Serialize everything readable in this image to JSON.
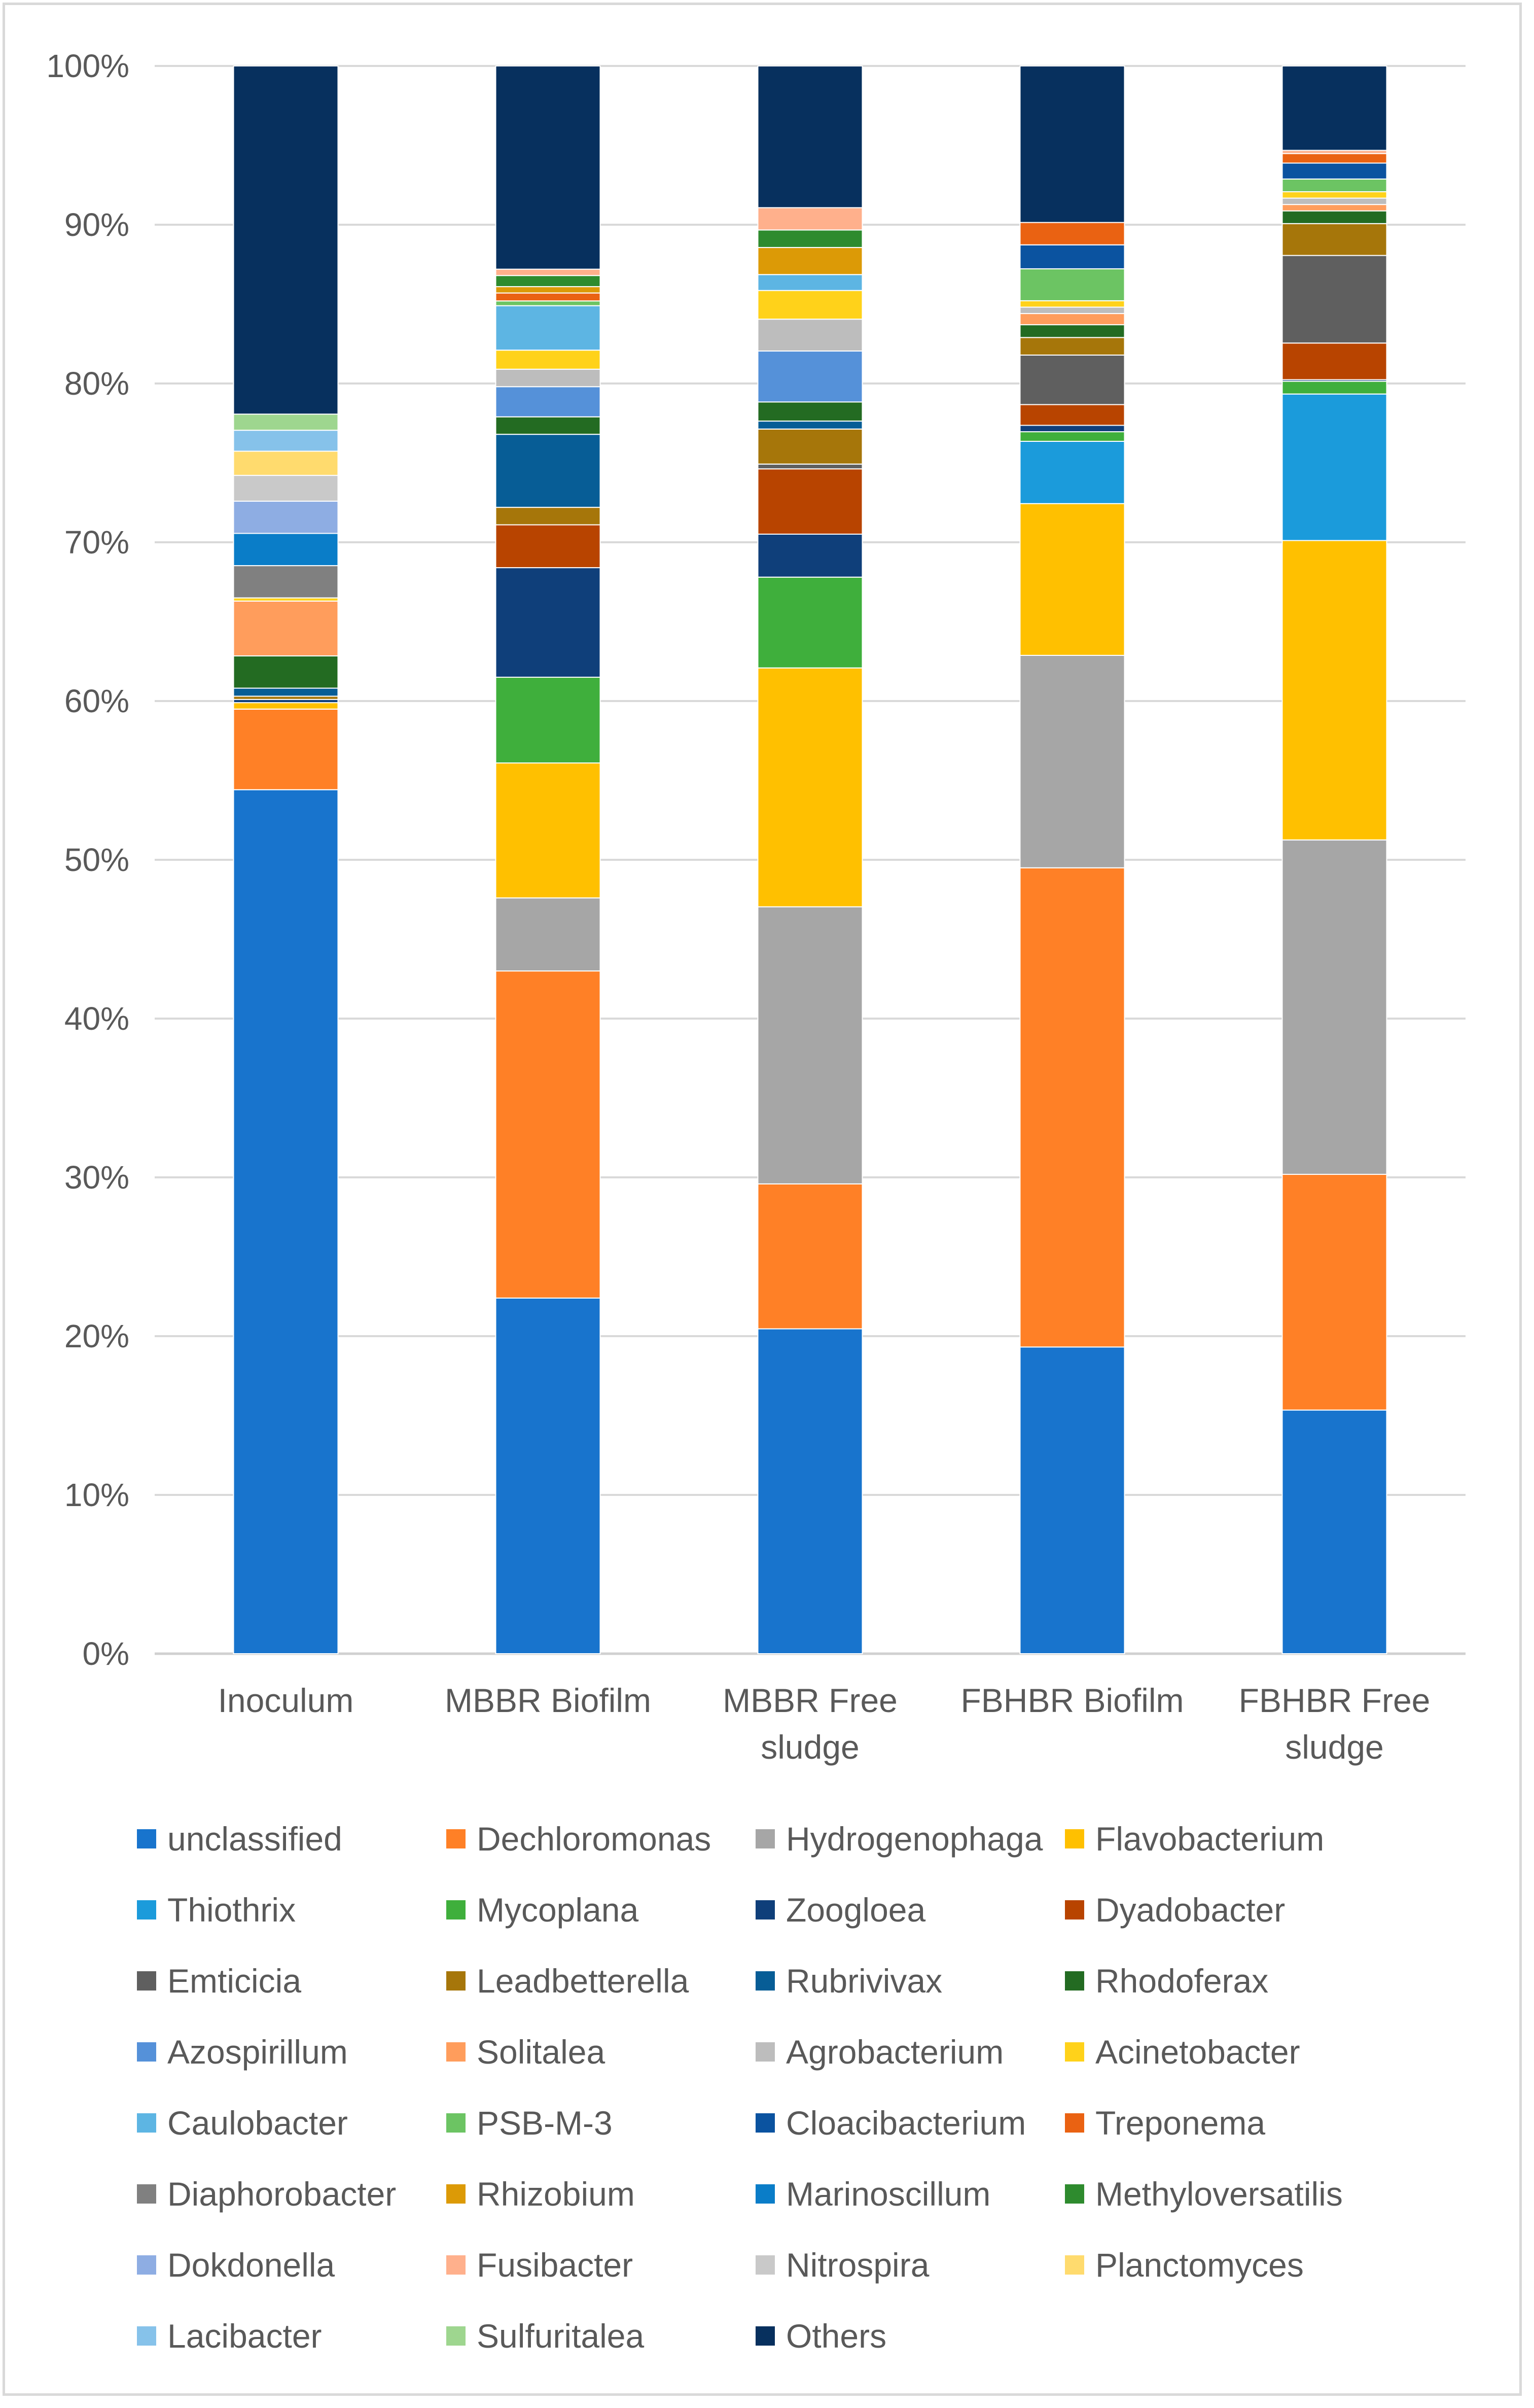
{
  "chart_data": {
    "type": "bar",
    "stacked": "percent",
    "title": "",
    "xlabel": "",
    "ylabel": "",
    "ylim": [
      0,
      100
    ],
    "y_ticks": [
      "0%",
      "10%",
      "20%",
      "30%",
      "40%",
      "50%",
      "60%",
      "70%",
      "80%",
      "90%",
      "100%"
    ],
    "grid": true,
    "legend_position": "bottom",
    "categories": [
      [
        "Inoculum"
      ],
      [
        "MBBR Biofilm"
      ],
      [
        "MBBR Free",
        "sludge"
      ],
      [
        "FBHBR Biofilm"
      ],
      [
        "FBHBR Free",
        "sludge"
      ]
    ],
    "series": [
      {
        "name": "unclassified",
        "color": "#1874CD",
        "values": [
          53.6,
          22.4,
          20.4,
          19.2,
          15.3
        ]
      },
      {
        "name": "Dechloromonas",
        "color": "#FF8026",
        "values": [
          5.0,
          20.6,
          9.1,
          30.0,
          14.8
        ]
      },
      {
        "name": "Hydrogenophaga",
        "color": "#A6A6A6",
        "values": [
          0.0,
          4.6,
          17.4,
          13.3,
          21.0
        ]
      },
      {
        "name": "Flavobacterium",
        "color": "#FFC000",
        "values": [
          0.4,
          8.5,
          15.0,
          9.5,
          18.8
        ]
      },
      {
        "name": "Thiothrix",
        "color": "#1B9BDB",
        "values": [
          0.0,
          0.0,
          0.0,
          3.9,
          9.2
        ]
      },
      {
        "name": "Mycoplana",
        "color": "#3FAF3C",
        "values": [
          0.0,
          5.4,
          5.7,
          0.6,
          0.8
        ]
      },
      {
        "name": "Zoogloea",
        "color": "#0F3F7A",
        "values": [
          0.2,
          6.9,
          2.7,
          0.4,
          0.1
        ]
      },
      {
        "name": "Dyadobacter",
        "color": "#B84400",
        "values": [
          0.0,
          2.7,
          4.1,
          1.3,
          2.3
        ]
      },
      {
        "name": "Emticicia",
        "color": "#5F5F5F",
        "values": [
          0.0,
          0.0,
          0.3,
          3.1,
          5.5
        ]
      },
      {
        "name": "Leadbetterella",
        "color": "#A6760A",
        "values": [
          0.2,
          1.1,
          2.2,
          1.1,
          2.0
        ]
      },
      {
        "name": "Rubrivivax",
        "color": "#075D96",
        "values": [
          0.5,
          4.6,
          0.5,
          0.0,
          0.0
        ]
      },
      {
        "name": "Rhodoferax",
        "color": "#236B22",
        "values": [
          2.0,
          1.1,
          1.2,
          0.8,
          0.8
        ]
      },
      {
        "name": "Azospirillum",
        "color": "#5591D9",
        "values": [
          0.0,
          1.9,
          3.2,
          0.0,
          0.0
        ]
      },
      {
        "name": "Solitalea",
        "color": "#FF9D5C",
        "values": [
          3.4,
          0.0,
          0.0,
          0.7,
          0.4
        ]
      },
      {
        "name": "Agrobacterium",
        "color": "#BDBDBD",
        "values": [
          0.0,
          1.1,
          2.0,
          0.4,
          0.4
        ]
      },
      {
        "name": "Acinetobacter",
        "color": "#FFD21A",
        "values": [
          0.2,
          1.2,
          1.8,
          0.4,
          0.4
        ]
      },
      {
        "name": "Caulobacter",
        "color": "#5DB5E3",
        "values": [
          0.0,
          2.8,
          1.0,
          0.0,
          0.0
        ]
      },
      {
        "name": "PSB-M-3",
        "color": "#6CC463",
        "values": [
          0.0,
          0.3,
          0.0,
          2.0,
          0.8
        ]
      },
      {
        "name": "Cloacibacterium",
        "color": "#0B53A0",
        "values": [
          0.0,
          0.0,
          0.0,
          1.5,
          1.0
        ]
      },
      {
        "name": "Treponema",
        "color": "#EA6212",
        "values": [
          0.0,
          0.5,
          0.0,
          1.4,
          0.6
        ]
      },
      {
        "name": "Diaphorobacter",
        "color": "#808080",
        "values": [
          2.0,
          0.0,
          0.0,
          0.0,
          0.0
        ]
      },
      {
        "name": "Rhizobium",
        "color": "#DC9A06",
        "values": [
          0.0,
          0.4,
          1.7,
          0.0,
          0.0
        ]
      },
      {
        "name": "Marinoscillum",
        "color": "#0A7DC8",
        "values": [
          2.0,
          0.0,
          0.0,
          0.0,
          0.0
        ]
      },
      {
        "name": "Methyloversatilis",
        "color": "#2E8B2E",
        "values": [
          0.0,
          0.7,
          1.1,
          0.0,
          0.0
        ]
      },
      {
        "name": "Dokdonella",
        "color": "#8EADE3",
        "values": [
          2.0,
          0.0,
          0.0,
          0.0,
          0.0
        ]
      },
      {
        "name": "Fusibacter",
        "color": "#FFB08C",
        "values": [
          0.0,
          0.4,
          1.4,
          0.0,
          0.2
        ]
      },
      {
        "name": "Nitrospira",
        "color": "#C9C9C9",
        "values": [
          1.6,
          0.0,
          0.0,
          0.0,
          0.0
        ]
      },
      {
        "name": "Planctomyces",
        "color": "#FFDB6E",
        "values": [
          1.5,
          0.0,
          0.0,
          0.0,
          0.0
        ]
      },
      {
        "name": "Lacibacter",
        "color": "#86C2EA",
        "values": [
          1.3,
          0.0,
          0.0,
          0.0,
          0.0
        ]
      },
      {
        "name": "Sulfuritalea",
        "color": "#9ED68F",
        "values": [
          1.0,
          0.0,
          0.0,
          0.0,
          0.0
        ]
      },
      {
        "name": "Others",
        "color": "#07305E",
        "values": [
          21.6,
          12.8,
          8.9,
          9.8,
          5.3
        ]
      }
    ]
  }
}
